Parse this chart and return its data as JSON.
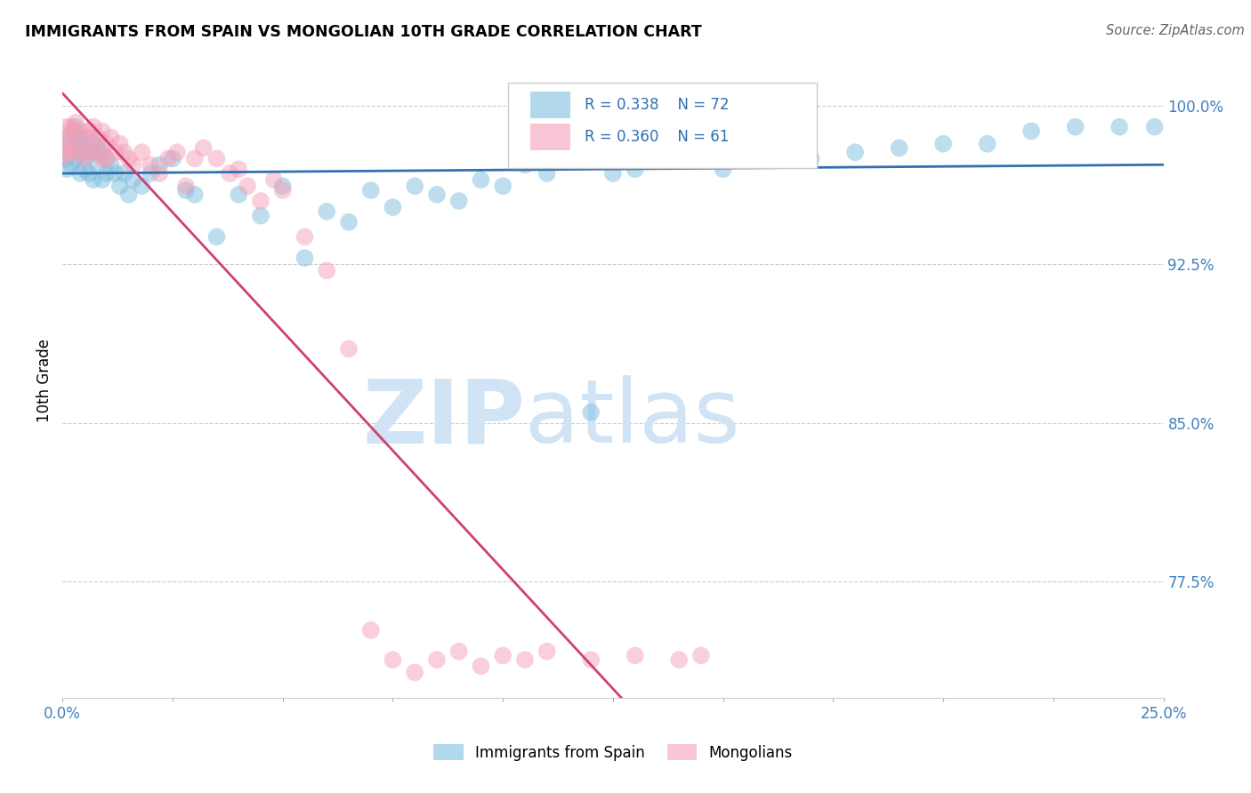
{
  "title": "IMMIGRANTS FROM SPAIN VS MONGOLIAN 10TH GRADE CORRELATION CHART",
  "source": "Source: ZipAtlas.com",
  "ylabel": "10th Grade",
  "legend_blue_R": "0.338",
  "legend_blue_N": "72",
  "legend_pink_R": "0.360",
  "legend_pink_N": "61",
  "blue_color": "#7fbfdf",
  "pink_color": "#f4a0b8",
  "blue_line_color": "#3070b0",
  "pink_line_color": "#d04070",
  "grid_color": "#cccccc",
  "tick_color": "#4080c0",
  "watermark_zip": "ZIP",
  "watermark_atlas": "atlas",
  "watermark_color": "#d0e4f5",
  "xlim": [
    0.0,
    0.25
  ],
  "ylim": [
    0.72,
    1.02
  ],
  "yticks": [
    0.775,
    0.85,
    0.925,
    1.0
  ],
  "ytick_labels": [
    "77.5%",
    "85.0%",
    "92.5%",
    "100.0%"
  ],
  "xtick_labels_show": [
    "0.0%",
    "25.0%"
  ],
  "blue_x": [
    0.0008,
    0.001,
    0.0012,
    0.0015,
    0.002,
    0.002,
    0.0025,
    0.003,
    0.003,
    0.003,
    0.004,
    0.004,
    0.004,
    0.005,
    0.005,
    0.005,
    0.006,
    0.006,
    0.006,
    0.007,
    0.007,
    0.007,
    0.008,
    0.008,
    0.009,
    0.009,
    0.01,
    0.01,
    0.011,
    0.012,
    0.013,
    0.014,
    0.015,
    0.016,
    0.018,
    0.02,
    0.022,
    0.025,
    0.028,
    0.03,
    0.035,
    0.04,
    0.045,
    0.05,
    0.055,
    0.06,
    0.065,
    0.07,
    0.075,
    0.08,
    0.085,
    0.09,
    0.095,
    0.1,
    0.105,
    0.11,
    0.115,
    0.12,
    0.125,
    0.13,
    0.14,
    0.15,
    0.16,
    0.17,
    0.18,
    0.19,
    0.2,
    0.21,
    0.22,
    0.23,
    0.24,
    0.248
  ],
  "blue_y": [
    0.975,
    0.97,
    0.985,
    0.978,
    0.982,
    0.972,
    0.988,
    0.99,
    0.98,
    0.975,
    0.985,
    0.978,
    0.968,
    0.982,
    0.975,
    0.97,
    0.985,
    0.978,
    0.968,
    0.982,
    0.978,
    0.965,
    0.98,
    0.972,
    0.978,
    0.965,
    0.975,
    0.968,
    0.972,
    0.968,
    0.962,
    0.968,
    0.958,
    0.965,
    0.962,
    0.968,
    0.972,
    0.975,
    0.96,
    0.958,
    0.938,
    0.958,
    0.948,
    0.962,
    0.928,
    0.95,
    0.945,
    0.96,
    0.952,
    0.962,
    0.958,
    0.955,
    0.965,
    0.962,
    0.972,
    0.968,
    0.975,
    0.855,
    0.968,
    0.97,
    0.978,
    0.97,
    0.978,
    0.975,
    0.978,
    0.98,
    0.982,
    0.982,
    0.988,
    0.99,
    0.99,
    0.99
  ],
  "pink_x": [
    0.0005,
    0.0008,
    0.001,
    0.001,
    0.0015,
    0.002,
    0.002,
    0.0025,
    0.003,
    0.003,
    0.004,
    0.004,
    0.005,
    0.005,
    0.006,
    0.006,
    0.007,
    0.007,
    0.008,
    0.008,
    0.009,
    0.009,
    0.01,
    0.01,
    0.011,
    0.012,
    0.013,
    0.014,
    0.015,
    0.016,
    0.018,
    0.02,
    0.022,
    0.024,
    0.026,
    0.028,
    0.03,
    0.032,
    0.035,
    0.038,
    0.04,
    0.042,
    0.045,
    0.048,
    0.05,
    0.055,
    0.06,
    0.065,
    0.07,
    0.075,
    0.08,
    0.085,
    0.09,
    0.095,
    0.1,
    0.105,
    0.11,
    0.12,
    0.13,
    0.14,
    0.145
  ],
  "pink_y": [
    0.976,
    0.982,
    0.99,
    0.978,
    0.985,
    0.99,
    0.978,
    0.988,
    0.992,
    0.982,
    0.988,
    0.978,
    0.985,
    0.975,
    0.988,
    0.978,
    0.99,
    0.982,
    0.985,
    0.978,
    0.988,
    0.975,
    0.982,
    0.975,
    0.985,
    0.978,
    0.982,
    0.978,
    0.975,
    0.972,
    0.978,
    0.972,
    0.968,
    0.975,
    0.978,
    0.962,
    0.975,
    0.98,
    0.975,
    0.968,
    0.97,
    0.962,
    0.955,
    0.965,
    0.96,
    0.938,
    0.922,
    0.885,
    0.752,
    0.738,
    0.732,
    0.738,
    0.742,
    0.735,
    0.74,
    0.738,
    0.742,
    0.738,
    0.74,
    0.738,
    0.74
  ]
}
